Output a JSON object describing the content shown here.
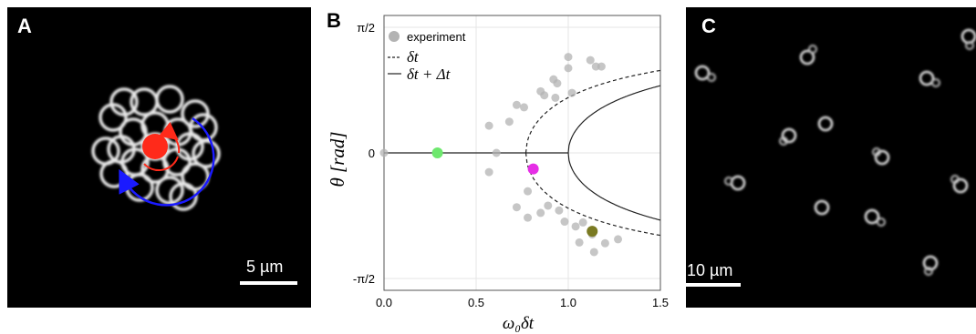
{
  "panel_a": {
    "letter": "A",
    "scale_bar_label": "5 µm"
  },
  "panel_b": {
    "letter": "B",
    "chart_data": {
      "type": "scatter",
      "xlabel": "ω₀δt",
      "ylabel": "θ [rad]",
      "xlim": [
        0,
        1.5
      ],
      "ylim": [
        -1.5708,
        1.5708
      ],
      "x_ticks": [
        "0.0",
        "0.5",
        "1.0",
        "1.5"
      ],
      "y_ticks": [
        "π/2",
        "0",
        "-π/2"
      ],
      "grid": true,
      "legend": {
        "placement": "top-left",
        "entries": [
          "experiment",
          "δt",
          "δt + Δt"
        ]
      },
      "series": [
        {
          "name": "experiment",
          "style": "gray-points",
          "color": "#b3b3b3",
          "points": [
            [
              0.0,
              0.0
            ],
            [
              0.57,
              0.34
            ],
            [
              0.57,
              -0.24
            ],
            [
              0.61,
              0.0
            ],
            [
              0.68,
              0.39
            ],
            [
              0.72,
              0.6
            ],
            [
              0.76,
              0.57
            ],
            [
              0.78,
              -0.48
            ],
            [
              0.72,
              -0.68
            ],
            [
              0.78,
              -0.81
            ],
            [
              0.85,
              0.77
            ],
            [
              0.85,
              -0.75
            ],
            [
              0.87,
              0.72
            ],
            [
              0.89,
              -0.66
            ],
            [
              0.92,
              0.92
            ],
            [
              0.94,
              0.87
            ],
            [
              0.93,
              0.69
            ],
            [
              0.95,
              -0.72
            ],
            [
              0.98,
              -0.86
            ],
            [
              1.02,
              0.75
            ],
            [
              1.0,
              1.06
            ],
            [
              1.0,
              1.2
            ],
            [
              1.06,
              -1.12
            ],
            [
              1.04,
              -0.92
            ],
            [
              1.12,
              1.16
            ],
            [
              1.15,
              1.08
            ],
            [
              1.18,
              1.08
            ],
            [
              1.14,
              -1.24
            ],
            [
              1.2,
              -1.13
            ],
            [
              1.27,
              -1.08
            ],
            [
              1.13,
              -1.02
            ],
            [
              1.08,
              -0.87
            ]
          ]
        },
        {
          "name": "highlighted",
          "style": "colored-points",
          "points": [
            {
              "x": 0.29,
              "y": 0.0,
              "color": "#6ee86e"
            },
            {
              "x": 0.81,
              "y": -0.2,
              "color": "#e62ee6"
            },
            {
              "x": 1.13,
              "y": -0.98,
              "color": "#7a7a22"
            }
          ]
        },
        {
          "name": "δt",
          "style": "dashed-line",
          "curve": "cos θ = 0.77 / (ω₀δt) for ω₀δt ≥ 0.77; θ = 0 below",
          "x0": 0.77
        },
        {
          "name": "δt + Δt",
          "style": "solid-line",
          "curve": "cos θ = 1 / (ω₀δt) for ω₀δt ≥ 1; θ = 0 below",
          "x0": 1.0
        }
      ]
    }
  },
  "panel_c": {
    "letter": "C",
    "scale_bar_label": "10 µm"
  }
}
